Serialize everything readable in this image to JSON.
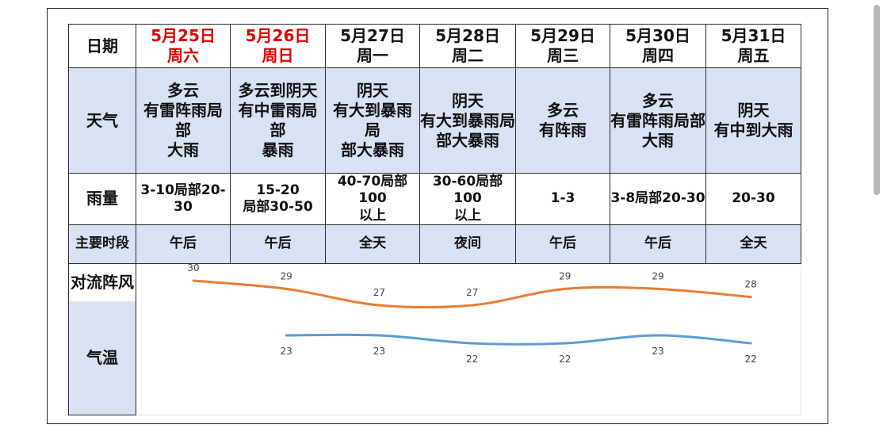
{
  "rows": {
    "date_label": "日期",
    "weather_label": "天气",
    "rain_label": "雨量",
    "period_label": "主要时段",
    "gust_label": "对流阵风",
    "temp_label": "气温"
  },
  "days": [
    {
      "date": "5月25日",
      "week": "周六",
      "weekend": true,
      "weather": [
        "多云",
        "有雷阵雨局部",
        "大雨"
      ],
      "rain": [
        "3-10局部20-30"
      ],
      "period": "午后"
    },
    {
      "date": "5月26日",
      "week": "周日",
      "weekend": true,
      "weather": [
        "多云到阴天",
        "有中雷雨局部",
        "暴雨"
      ],
      "rain": [
        "15-20",
        "局部30-50"
      ],
      "period": "午后"
    },
    {
      "date": "5月27日",
      "week": "周一",
      "weekend": false,
      "weather": [
        "阴天",
        "有大到暴雨局",
        "部大暴雨"
      ],
      "rain": [
        "40-70局部100",
        "以上"
      ],
      "period": "全天"
    },
    {
      "date": "5月28日",
      "week": "周二",
      "weekend": false,
      "weather": [
        "阴天",
        "有大到暴雨局",
        "部大暴雨"
      ],
      "rain": [
        "30-60局部100",
        "以上"
      ],
      "period": "夜间"
    },
    {
      "date": "5月29日",
      "week": "周三",
      "weekend": false,
      "weather": [
        "多云",
        "有阵雨"
      ],
      "rain": [
        "1-3"
      ],
      "period": "午后"
    },
    {
      "date": "5月30日",
      "week": "周四",
      "weekend": false,
      "weather": [
        "多云",
        "有雷阵雨局部",
        "大雨"
      ],
      "rain": [
        "3-8局部20-30"
      ],
      "period": "午后"
    },
    {
      "date": "5月31日",
      "week": "周五",
      "weekend": false,
      "weather": [
        "阴天",
        "有中到大雨"
      ],
      "rain": [
        "20-30"
      ],
      "period": "全天"
    }
  ],
  "colors": {
    "weekend": "#e00000",
    "high_line": "#e87d33",
    "low_line": "#5b9bd5",
    "row_fill": "#d9e1f2"
  },
  "chart_data": {
    "type": "line",
    "title": "",
    "xlabel": "",
    "ylabel": "",
    "categories": [
      "5月25日",
      "5月26日",
      "5月27日",
      "5月28日",
      "5月29日",
      "5月30日",
      "5月31日"
    ],
    "ylim": [
      20,
      31
    ],
    "grid": false,
    "legend": "none",
    "smooth": true,
    "series": [
      {
        "values": [
          30,
          29,
          27,
          27,
          29,
          29,
          28
        ],
        "color": "#e87d33"
      },
      {
        "values": [
          null,
          23,
          23,
          22,
          22,
          23,
          22
        ],
        "color": "#5b9bd5"
      }
    ]
  }
}
